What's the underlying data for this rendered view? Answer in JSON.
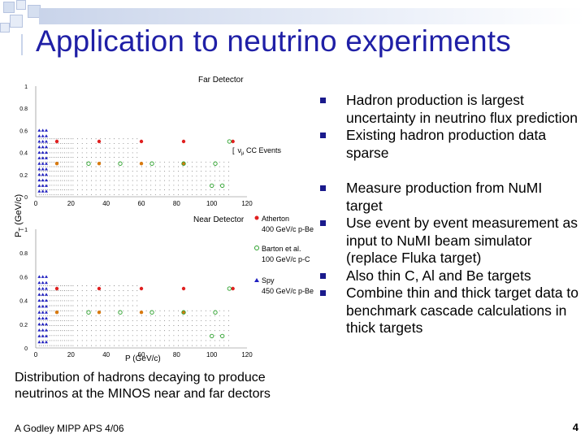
{
  "slide": {
    "title": "Application to neutrino experiments",
    "caption": "Distribution of hadrons decaying to produce neutrinos at the MINOS near and far dectors",
    "footer": "A Godley MIPP APS 4/06",
    "page_number": "4"
  },
  "bullets": [
    "Hadron production is largest uncertainty in neutrino flux prediction",
    "Existing hadron production data sparse",
    "Measure production from NuMI target",
    "Use event by event measurement as input to NuMI beam simulator (replace Fluka target)",
    "Also thin C, Al and Be targets",
    "Combine thin and thick target data to benchmark cascade calculations in thick targets"
  ],
  "figure": {
    "y_axis_label": "P",
    "y_axis_subscript": "T",
    "y_axis_unit": " (GeV/c)",
    "x_axis_label": "P (GeV/c)",
    "far_title": "Far Detector",
    "near_title": "Near Detector",
    "cc_events_label": "ν",
    "cc_events_sub": "μ",
    "cc_events_rest": " CC Events",
    "y_ticks": [
      "1",
      "0.8",
      "0.6",
      "0.4",
      "0.2",
      "0"
    ],
    "x_ticks": [
      "0",
      "20",
      "40",
      "60",
      "80",
      "100",
      "120"
    ],
    "legend": [
      {
        "name": "Atherton",
        "desc": "400 GeV/c p-Be",
        "color": "#e02020"
      },
      {
        "name": "Barton et al.",
        "desc": "100 GeV/c p-C",
        "color": "#2aa02a"
      },
      {
        "name": "Spy",
        "desc": "450 GeV/c p-Be",
        "color": "#2020c0"
      }
    ],
    "colors": {
      "atherton": "#e02020",
      "barton": "#2aa02a",
      "spy": "#2020c0",
      "barton_orange": "#d87a10"
    }
  }
}
